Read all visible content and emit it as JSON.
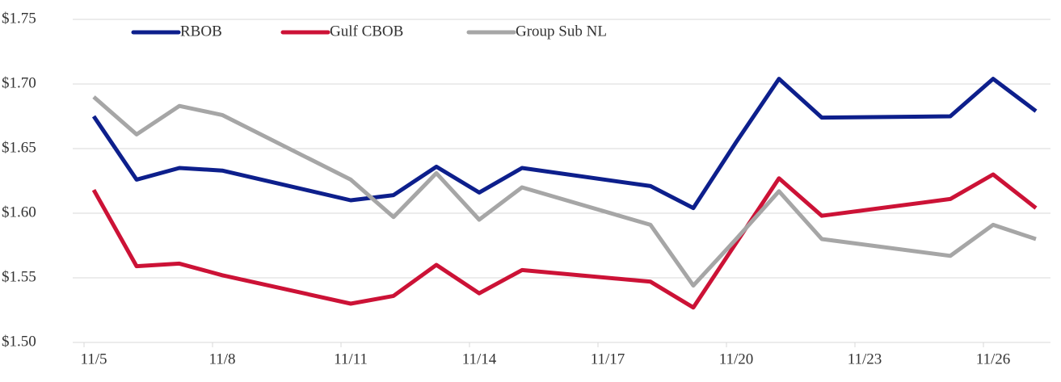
{
  "chart_data": {
    "type": "line",
    "x": [
      "11/5",
      "11/6",
      "11/7",
      "11/8",
      "11/11",
      "11/12",
      "11/13",
      "11/14",
      "11/15",
      "11/18",
      "11/19",
      "11/20",
      "11/21",
      "11/22",
      "11/25",
      "11/26",
      "11/27"
    ],
    "series": [
      {
        "name": "RBOB",
        "color": "#0d1f8c",
        "values": [
          1.675,
          1.626,
          1.635,
          1.633,
          1.61,
          1.614,
          1.636,
          1.616,
          1.635,
          1.621,
          1.604,
          1.655,
          1.704,
          1.674,
          1.675,
          1.704,
          1.679
        ]
      },
      {
        "name": "Gulf CBOB",
        "color": "#cc1236",
        "values": [
          1.618,
          1.559,
          1.561,
          1.552,
          1.53,
          1.536,
          1.56,
          1.538,
          1.556,
          1.547,
          1.527,
          1.577,
          1.627,
          1.598,
          1.611,
          1.63,
          1.604
        ]
      },
      {
        "name": "Group Sub NL",
        "color": "#a6a6a6",
        "values": [
          1.69,
          1.661,
          1.683,
          1.676,
          1.626,
          1.597,
          1.631,
          1.595,
          1.62,
          1.591,
          1.544,
          1.58,
          1.617,
          1.58,
          1.567,
          1.591,
          1.58
        ]
      }
    ],
    "ylim": [
      1.5,
      1.75
    ],
    "yticks": [
      {
        "value": 1.5,
        "label": "$1.50"
      },
      {
        "value": 1.55,
        "label": "$1.55"
      },
      {
        "value": 1.6,
        "label": "$1.60"
      },
      {
        "value": 1.65,
        "label": "$1.65"
      },
      {
        "value": 1.7,
        "label": "$1.70"
      },
      {
        "value": 1.75,
        "label": "$1.75"
      }
    ],
    "xticks": [
      "11/5",
      "11/8",
      "11/11",
      "11/14",
      "11/17",
      "11/20",
      "11/23",
      "11/26"
    ],
    "grid": true
  }
}
